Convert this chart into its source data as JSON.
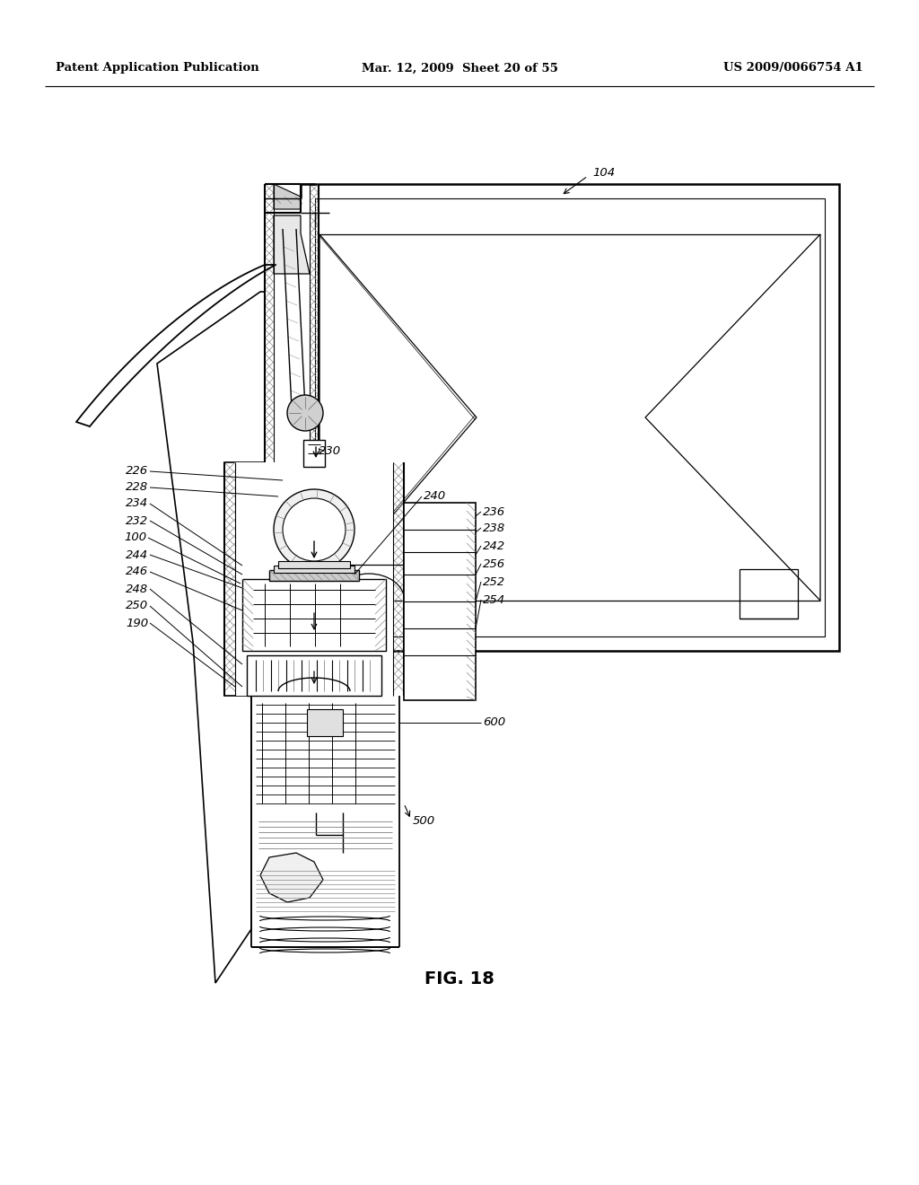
{
  "bg": "#ffffff",
  "lc": "#000000",
  "gc": "#aaaaaa",
  "hc": "#666666",
  "header_left": "Patent Application Publication",
  "header_mid": "Mar. 12, 2009  Sheet 20 of 55",
  "header_right": "US 2009/0066754 A1",
  "fig_caption": "FIG. 18",
  "ref_104": "104",
  "ref_230": "230",
  "ref_240": "240",
  "ref_226": "226",
  "ref_228": "228",
  "ref_234": "234",
  "ref_232": "232",
  "ref_100": "100",
  "ref_244": "244",
  "ref_246": "246",
  "ref_248": "248",
  "ref_250": "250",
  "ref_190": "190",
  "ref_236": "236",
  "ref_238": "238",
  "ref_242": "242",
  "ref_256": "256",
  "ref_252": "252",
  "ref_254": "254",
  "ref_600": "600",
  "ref_500": "500"
}
